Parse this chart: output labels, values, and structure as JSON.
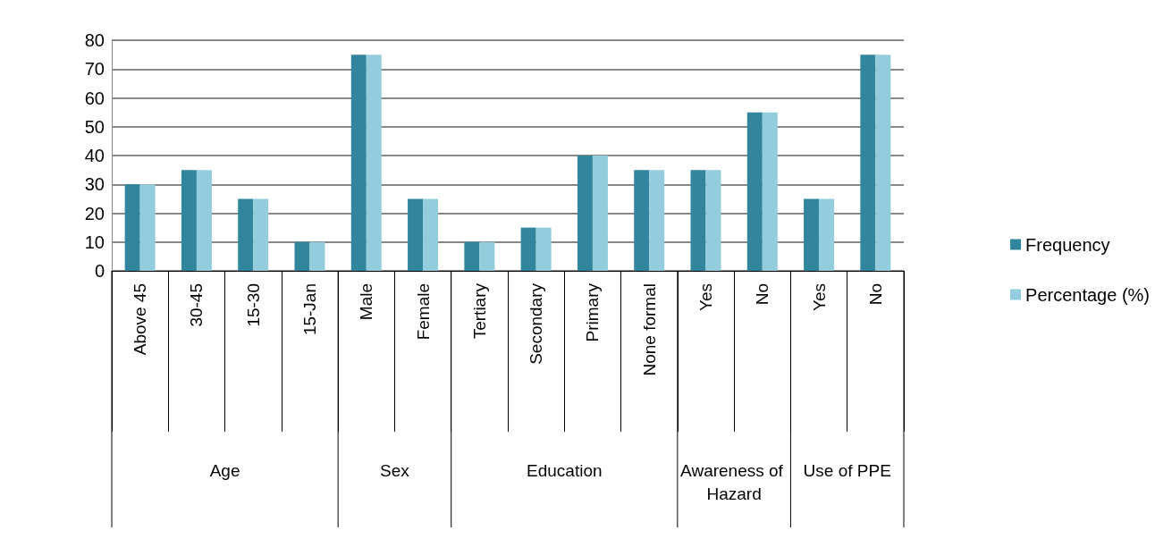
{
  "chart_data": {
    "type": "bar",
    "categories": [
      "Above 45",
      "30-45",
      "15-30",
      "15-Jan",
      "Male",
      "Female",
      "Tertiary",
      "Secondary",
      "Primary",
      "None formal",
      "Yes",
      "No",
      "Yes",
      "No"
    ],
    "series": [
      {
        "name": "Frequency",
        "color": "#31859c",
        "values": [
          30,
          35,
          25,
          10,
          75,
          25,
          10,
          15,
          40,
          35,
          35,
          55,
          25,
          75
        ]
      },
      {
        "name": "Percentage (%)",
        "color": "#93cddd",
        "values": [
          30,
          35,
          25,
          10,
          75,
          25,
          10,
          15,
          40,
          35,
          35,
          55,
          25,
          75
        ]
      }
    ],
    "annotations": [
      "Age",
      "Sex",
      "Education",
      "Awareness of Hazard",
      "Use of PPE"
    ],
    "ylim": [
      0,
      80
    ],
    "yticks": [
      0,
      10,
      20,
      30,
      40,
      50,
      60,
      70,
      80
    ],
    "grid": true,
    "legend": "right"
  }
}
